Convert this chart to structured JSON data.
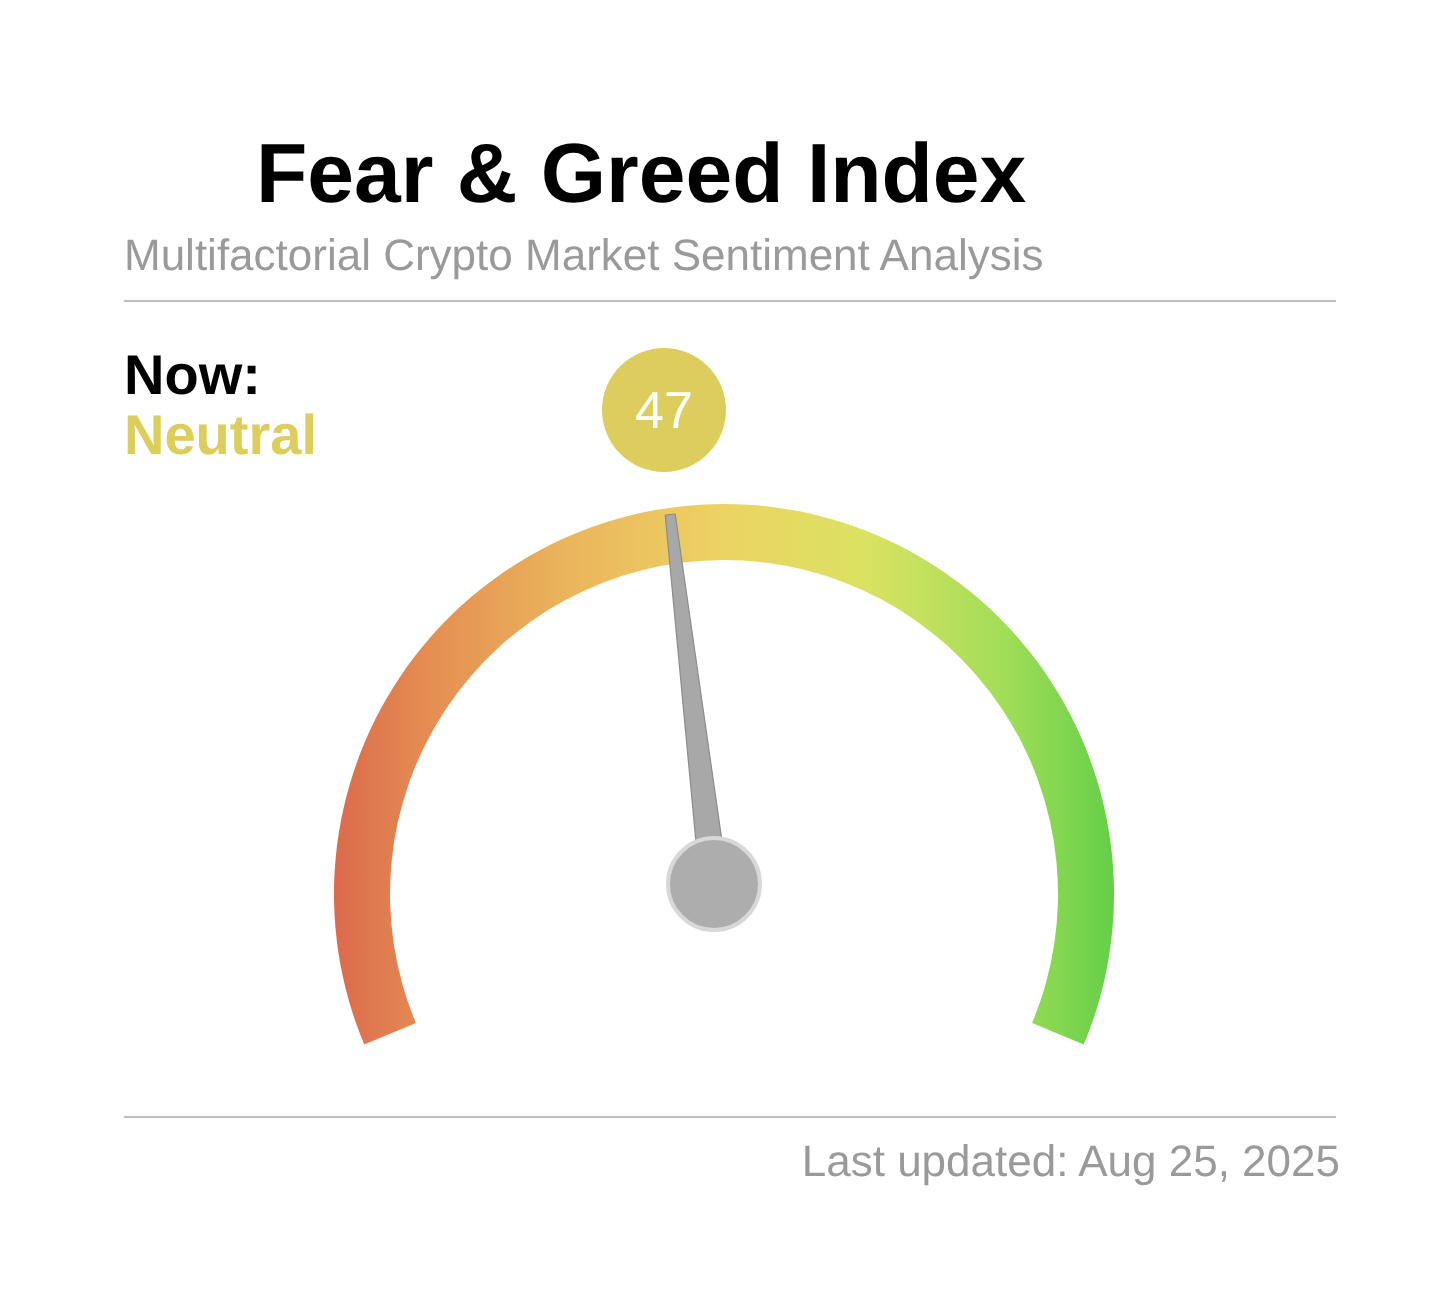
{
  "chart_data": {
    "type": "other",
    "title": "Fear & Greed Index",
    "subtitle": "Multifactorial Crypto Market Sentiment Analysis",
    "categories": [
      "Neutral"
    ],
    "values": [
      47
    ],
    "colors": [
      "#dccd5c"
    ],
    "data_labels": true,
    "annotations": [
      "Now:",
      "Last updated: Aug 25, 2025"
    ]
  }
}
